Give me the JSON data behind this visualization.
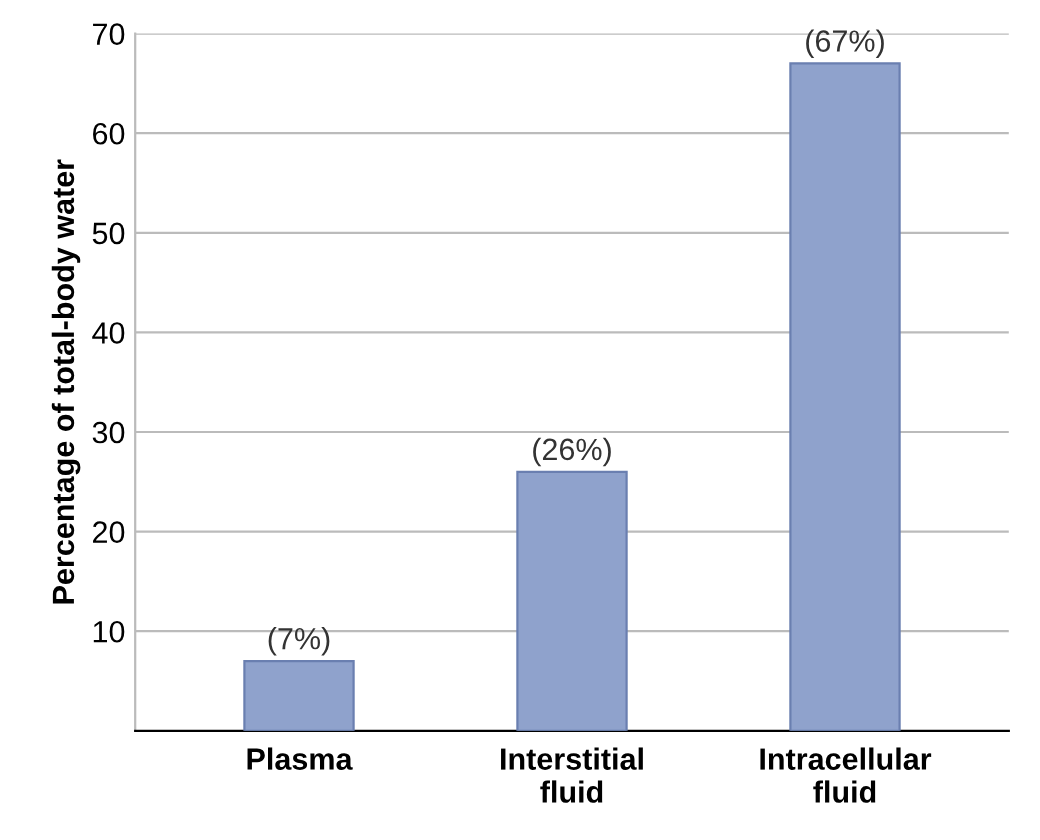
{
  "chart_data": {
    "type": "bar",
    "ylabel": "Percentage of total-body water",
    "categories": [
      "Plasma",
      "Interstitial\nfluid",
      "Intracellular\nfluid"
    ],
    "values": [
      7,
      26,
      67
    ],
    "value_labels": [
      "(7%)",
      "(26%)",
      "(67%)"
    ],
    "color": "#8fa2cc",
    "ylim": [
      0,
      70
    ],
    "yticks": [
      10,
      20,
      30,
      40,
      50,
      60,
      70
    ],
    "grid": "y"
  }
}
